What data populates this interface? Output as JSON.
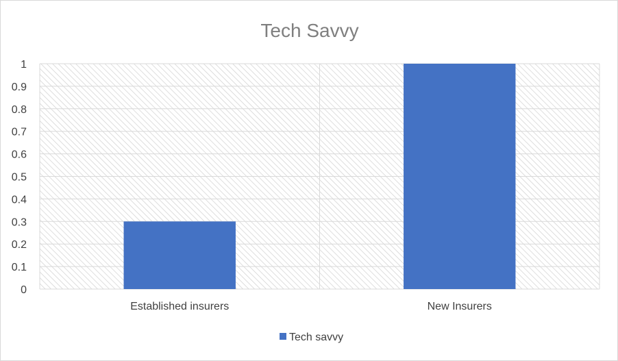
{
  "chart_data": {
    "type": "bar",
    "title": "Tech Savvy",
    "categories": [
      "Established insurers",
      "New Insurers"
    ],
    "series": [
      {
        "name": "Tech savvy",
        "values": [
          0.3,
          1.0
        ],
        "color": "#4472c4"
      }
    ],
    "ylim": [
      0,
      1
    ],
    "yticks": [
      "0",
      "0.1",
      "0.2",
      "0.3",
      "0.4",
      "0.5",
      "0.6",
      "0.7",
      "0.8",
      "0.9",
      "1"
    ],
    "grid": true,
    "legend_position": "bottom"
  }
}
